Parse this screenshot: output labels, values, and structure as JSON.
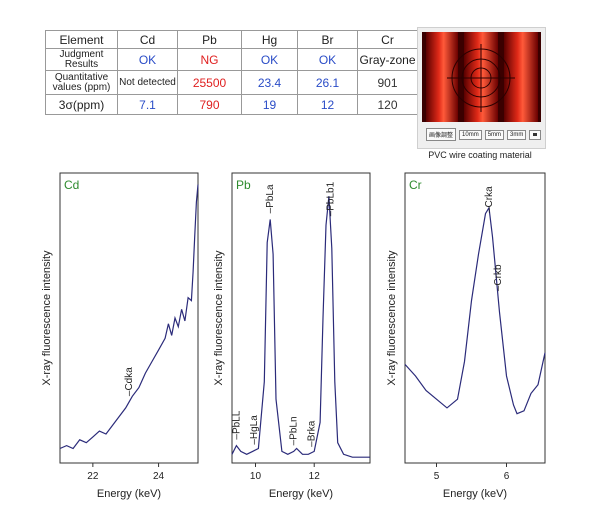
{
  "results_table": {
    "headers": [
      "Element",
      "Cd",
      "Pb",
      "Hg",
      "Br",
      "Cr"
    ],
    "rows": [
      {
        "label": "Judgment Results",
        "cells": [
          {
            "text": "OK",
            "color": "#2a4cc7"
          },
          {
            "text": "NG",
            "color": "#e02020"
          },
          {
            "text": "OK",
            "color": "#2a4cc7"
          },
          {
            "text": "OK",
            "color": "#2a4cc7"
          },
          {
            "text": "Gray-zone",
            "color": "#222222"
          }
        ]
      },
      {
        "label": "Quantitative values (ppm)",
        "cells": [
          {
            "text": "Not detected",
            "color": "#222222"
          },
          {
            "text": "25500",
            "color": "#e02020"
          },
          {
            "text": "23.4",
            "color": "#2a4cc7"
          },
          {
            "text": "26.1",
            "color": "#2a4cc7"
          },
          {
            "text": "901",
            "color": "#333333"
          }
        ]
      },
      {
        "label": "3σ(ppm)",
        "cells": [
          {
            "text": "7.1",
            "color": "#2a4cc7"
          },
          {
            "text": "790",
            "color": "#e02020"
          },
          {
            "text": "19",
            "color": "#2a4cc7"
          },
          {
            "text": "12",
            "color": "#2a4cc7"
          },
          {
            "text": "120",
            "color": "#333333"
          }
        ]
      }
    ]
  },
  "photo": {
    "caption": "PVC wire coating material",
    "buttons": [
      "画像調整",
      "10mm",
      "5mm",
      "3mm"
    ]
  },
  "colors": {
    "line": "#2b2b7a",
    "panel_title": "#2e8b2e",
    "frame": "#333333"
  },
  "chart_data": [
    {
      "type": "line",
      "title": "Cd",
      "xlabel": "Energy (keV)",
      "ylabel": "X-ray fluorescence intensity",
      "xlim": [
        21.0,
        25.2
      ],
      "ylim": [
        0,
        100
      ],
      "xticks": [
        22,
        24
      ],
      "x": [
        21.0,
        21.2,
        21.4,
        21.6,
        21.8,
        22.0,
        22.2,
        22.4,
        22.6,
        22.8,
        23.0,
        23.2,
        23.4,
        23.6,
        23.8,
        24.0,
        24.2,
        24.3,
        24.4,
        24.5,
        24.6,
        24.7,
        24.8,
        24.9,
        25.0,
        25.05,
        25.1,
        25.15,
        25.2
      ],
      "y": [
        5,
        6,
        5,
        8,
        7,
        9,
        11,
        10,
        13,
        16,
        19,
        23,
        26,
        31,
        35,
        39,
        43,
        48,
        44,
        50,
        47,
        53,
        49,
        57,
        56,
        66,
        78,
        90,
        96
      ],
      "annotations": [
        {
          "text": "Cdka",
          "x": 23.1
        }
      ]
    },
    {
      "type": "line",
      "title": "Pb",
      "xlabel": "Energy (keV)",
      "ylabel": "X-ray fluorescence intensity",
      "xlim": [
        9.2,
        13.9
      ],
      "ylim": [
        0,
        100
      ],
      "xticks": [
        10,
        12
      ],
      "x": [
        9.2,
        9.35,
        9.5,
        9.7,
        9.9,
        10.1,
        10.3,
        10.4,
        10.5,
        10.6,
        10.7,
        10.9,
        11.1,
        11.3,
        11.4,
        11.6,
        11.8,
        12.0,
        12.2,
        12.3,
        12.4,
        12.5,
        12.6,
        12.7,
        12.8,
        13.0,
        13.3,
        13.6,
        13.9
      ],
      "y": [
        3,
        6,
        4,
        3,
        4,
        5,
        28,
        76,
        84,
        72,
        22,
        4,
        3,
        4,
        5,
        3,
        3,
        4,
        14,
        50,
        82,
        92,
        74,
        28,
        7,
        3,
        2,
        2,
        2
      ],
      "annotations": [
        {
          "text": "PbLL",
          "x": 9.35
        },
        {
          "text": "HgLa",
          "x": 9.95
        },
        {
          "text": "PbLa",
          "x": 10.5
        },
        {
          "text": "PbLn",
          "x": 11.3
        },
        {
          "text": "Brka",
          "x": 11.9
        },
        {
          "text": "PbLb1",
          "x": 12.55
        }
      ]
    },
    {
      "type": "line",
      "title": "Cr",
      "xlabel": "Energy (keV)",
      "ylabel": "X-ray fluorescence intensity",
      "xlim": [
        4.55,
        6.55
      ],
      "ylim": [
        0,
        100
      ],
      "xticks": [
        5,
        6
      ],
      "x": [
        4.55,
        4.7,
        4.85,
        5.0,
        5.15,
        5.3,
        5.4,
        5.5,
        5.6,
        5.7,
        5.75,
        5.8,
        5.9,
        6.0,
        6.1,
        6.15,
        6.25,
        6.35,
        6.45,
        6.55
      ],
      "y": [
        34,
        30,
        25,
        22,
        19,
        22,
        35,
        56,
        72,
        86,
        88,
        78,
        52,
        30,
        20,
        17,
        18,
        24,
        27,
        38
      ],
      "annotations": [
        {
          "text": "Crka",
          "x": 5.75
        },
        {
          "text": "Crkb",
          "x": 5.88
        }
      ]
    }
  ]
}
